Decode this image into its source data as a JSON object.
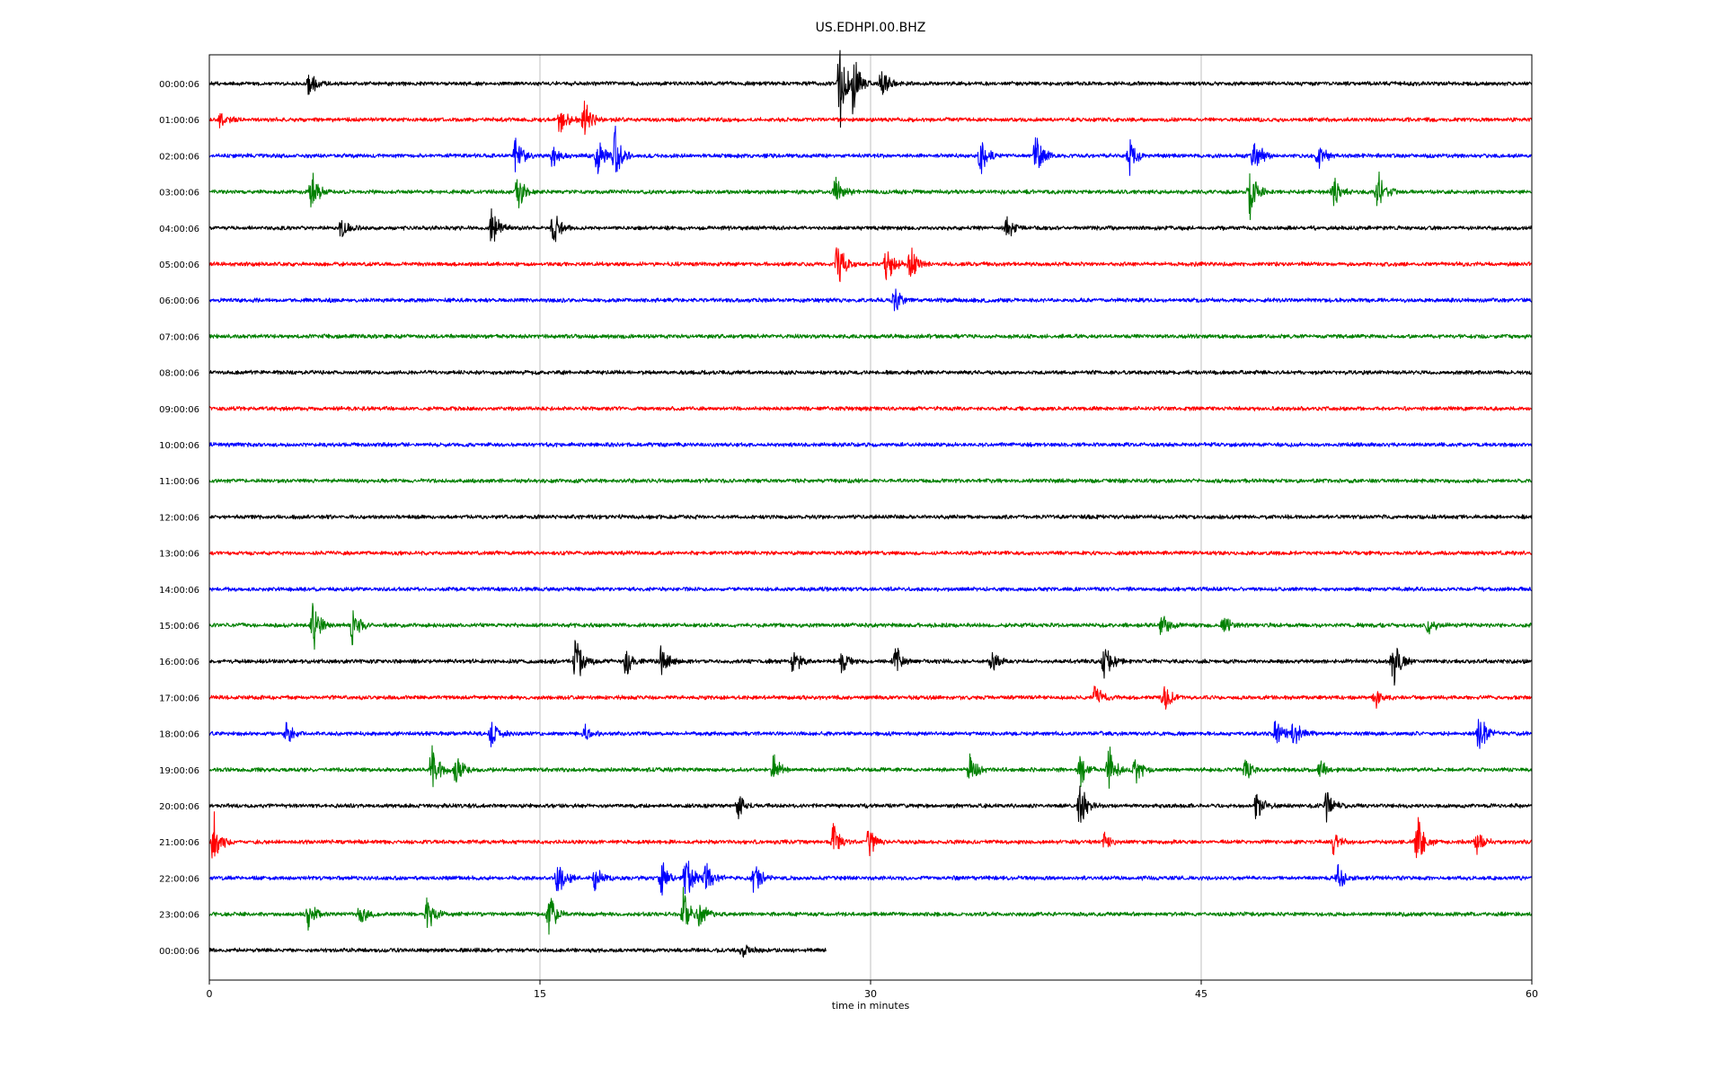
{
  "chart_data": {
    "type": "line",
    "title": "US.EDHPI.00.BHZ",
    "xlabel": "time in minutes",
    "ylabel": "",
    "xlim": [
      0,
      60
    ],
    "x_ticks": [
      0,
      15,
      30,
      45,
      60
    ],
    "grid": "vertical",
    "colors": [
      "#000000",
      "#ff0000",
      "#0000ff",
      "#008000"
    ],
    "rows": [
      {
        "label": "00:00:06",
        "end_minute": 60,
        "events": [
          [
            4.5,
            0.8
          ],
          [
            28.6,
            3.0
          ],
          [
            29.2,
            1.6
          ],
          [
            30.5,
            1.0
          ]
        ]
      },
      {
        "label": "01:00:06",
        "end_minute": 60,
        "events": [
          [
            0.5,
            0.4
          ],
          [
            15.9,
            1.0
          ],
          [
            17.0,
            1.0
          ]
        ]
      },
      {
        "label": "02:00:06",
        "end_minute": 60,
        "events": [
          [
            13.9,
            1.0
          ],
          [
            15.6,
            0.8
          ],
          [
            17.6,
            1.2
          ],
          [
            18.4,
            1.6
          ],
          [
            35.0,
            1.0
          ],
          [
            37.5,
            1.2
          ],
          [
            41.7,
            1.0
          ],
          [
            47.4,
            1.4
          ],
          [
            50.3,
            0.8
          ]
        ]
      },
      {
        "label": "03:00:06",
        "end_minute": 60,
        "events": [
          [
            4.6,
            1.2
          ],
          [
            14.0,
            1.0
          ],
          [
            28.4,
            0.9
          ],
          [
            47.2,
            1.4
          ],
          [
            51.0,
            0.9
          ],
          [
            53.0,
            1.2
          ]
        ]
      },
      {
        "label": "04:00:06",
        "end_minute": 60,
        "events": [
          [
            6.0,
            0.8
          ],
          [
            12.8,
            1.0
          ],
          [
            15.6,
            1.0
          ],
          [
            36.2,
            0.6
          ]
        ]
      },
      {
        "label": "05:00:06",
        "end_minute": 60,
        "events": [
          [
            28.5,
            1.4
          ],
          [
            30.7,
            1.4
          ],
          [
            31.8,
            1.2
          ]
        ]
      },
      {
        "label": "06:00:06",
        "end_minute": 60,
        "events": [
          [
            31.1,
            0.7
          ]
        ]
      },
      {
        "label": "07:00:06",
        "end_minute": 60,
        "events": []
      },
      {
        "label": "08:00:06",
        "end_minute": 60,
        "events": []
      },
      {
        "label": "09:00:06",
        "end_minute": 60,
        "events": []
      },
      {
        "label": "10:00:06",
        "end_minute": 60,
        "events": []
      },
      {
        "label": "11:00:06",
        "end_minute": 60,
        "events": []
      },
      {
        "label": "12:00:06",
        "end_minute": 60,
        "events": []
      },
      {
        "label": "13:00:06",
        "end_minute": 60,
        "events": []
      },
      {
        "label": "14:00:06",
        "end_minute": 60,
        "events": []
      },
      {
        "label": "15:00:06",
        "end_minute": 60,
        "events": [
          [
            4.7,
            1.4
          ],
          [
            6.5,
            1.0
          ],
          [
            43.2,
            0.6
          ],
          [
            46.0,
            0.6
          ],
          [
            55.3,
            0.5
          ]
        ]
      },
      {
        "label": "16:00:06",
        "end_minute": 60,
        "events": [
          [
            16.6,
            1.6
          ],
          [
            18.9,
            0.8
          ],
          [
            20.5,
            0.8
          ],
          [
            26.5,
            0.7
          ],
          [
            28.7,
            0.6
          ],
          [
            31.1,
            1.0
          ],
          [
            35.5,
            0.7
          ],
          [
            40.6,
            1.2
          ],
          [
            53.7,
            1.2
          ]
        ]
      },
      {
        "label": "17:00:06",
        "end_minute": 60,
        "events": [
          [
            40.2,
            0.8
          ],
          [
            43.3,
            0.9
          ],
          [
            52.9,
            0.6
          ]
        ]
      },
      {
        "label": "18:00:06",
        "end_minute": 60,
        "events": [
          [
            3.5,
            0.7
          ],
          [
            12.8,
            0.9
          ],
          [
            17.0,
            0.5
          ],
          [
            48.4,
            1.0
          ],
          [
            49.2,
            0.9
          ],
          [
            57.6,
            1.2
          ]
        ]
      },
      {
        "label": "19:00:06",
        "end_minute": 60,
        "events": [
          [
            10.1,
            1.2
          ],
          [
            11.2,
            0.9
          ],
          [
            25.6,
            0.8
          ],
          [
            34.5,
            0.9
          ],
          [
            39.5,
            1.0
          ],
          [
            40.8,
            1.2
          ],
          [
            42.0,
            0.8
          ],
          [
            47.0,
            0.6
          ],
          [
            50.4,
            0.5
          ]
        ]
      },
      {
        "label": "20:00:06",
        "end_minute": 60,
        "events": [
          [
            24.0,
            0.6
          ],
          [
            39.5,
            1.2
          ],
          [
            47.5,
            0.9
          ],
          [
            50.7,
            0.8
          ]
        ]
      },
      {
        "label": "21:00:06",
        "end_minute": 60,
        "events": [
          [
            0.2,
            1.4
          ],
          [
            28.3,
            1.0
          ],
          [
            29.9,
            0.9
          ],
          [
            40.6,
            0.5
          ],
          [
            51.0,
            0.6
          ],
          [
            54.8,
            1.4
          ],
          [
            57.5,
            0.6
          ]
        ]
      },
      {
        "label": "22:00:06",
        "end_minute": 60,
        "events": [
          [
            15.8,
            1.2
          ],
          [
            17.5,
            0.7
          ],
          [
            20.5,
            1.0
          ],
          [
            21.6,
            1.4
          ],
          [
            22.5,
            0.9
          ],
          [
            24.7,
            1.0
          ],
          [
            51.2,
            0.6
          ]
        ]
      },
      {
        "label": "23:00:06",
        "end_minute": 60,
        "events": [
          [
            4.5,
            0.7
          ],
          [
            6.8,
            0.6
          ],
          [
            9.9,
            1.0
          ],
          [
            15.4,
            1.2
          ],
          [
            21.5,
            1.4
          ],
          [
            22.2,
            0.8
          ]
        ]
      },
      {
        "label": "00:00:06",
        "end_minute": 28.0,
        "events": [
          [
            24.2,
            0.4
          ]
        ]
      }
    ]
  }
}
